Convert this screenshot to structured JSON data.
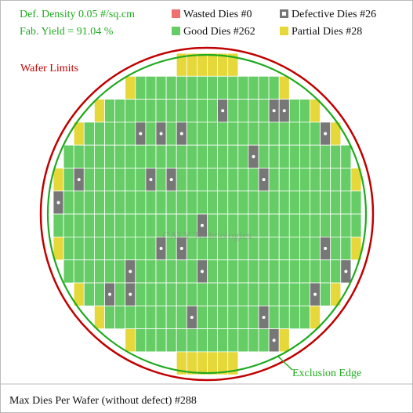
{
  "header": {
    "density": "Def. Density 0.05 #/sq.cm",
    "yield": "Fab. Yield = 91.04 %"
  },
  "legend": {
    "wasted": "Wasted Dies #0",
    "defective": "Defective Dies #26",
    "good": "Good Dies #262",
    "partial": "Partial Dies #28"
  },
  "wafer": {
    "limits_label": "Wafer Limits",
    "exclusion_label": "Exclusion Edge",
    "watermark": "CALY Technologies",
    "rows": [
      "............PPPPPP............",
      ".......PGGGGGGGGGGGGGGP.......",
      "....PGGGGGGGGGGGDGGGGDDGGP....",
      "..PGGGGGDGDGDGGGGGGGGGGGGGDP..",
      ".GGGGGGGGGGGGGGGGGGDGGGGGGGGG.",
      "PGDGGGGGGDGDGGGGGGGGDGGGGGGGGP",
      "DGGGGGGGGGGGGGGGGGGGGGGGGGGGGG",
      "GGGGGGGGGGGGGGDGGGGGGGGGGGGGGG",
      "PGGGGGGGGGDGDGGGGGGGGGGGGGDGGP",
      ".GGGGGGDGGGGGGDGGGGGGGGGGGGGD.",
      "..PGGDGDGGGGGGGGGGGGGGGGGDGP..",
      "....PGGGGGGGGDGGGGGGDGGGGP....",
      ".......PGGGGGGGGGGGGGDP.......",
      "............PPPPPP............"
    ]
  },
  "footer": "Max Dies Per Wafer (without defect) #288"
}
